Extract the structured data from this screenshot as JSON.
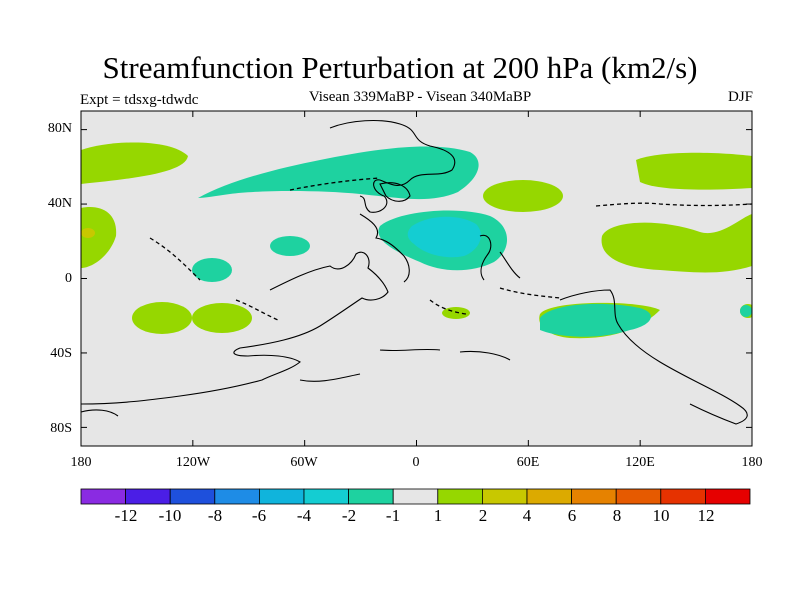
{
  "header": {
    "title": "Streamfunction Perturbation at 200 hPa (km2/s)",
    "experiment": "Expt = tdsxg-tdwdc",
    "subtitle": "Visean 339MaBP - Visean  340MaBP",
    "season": "DJF"
  },
  "map": {
    "projection": "cylindrical equidistant",
    "lon_range": [
      -180,
      180
    ],
    "lat_range": [
      -90,
      90
    ],
    "y_axis_labels": [
      "80N",
      "40N",
      "0",
      "40S",
      "80S"
    ],
    "x_axis_labels": [
      "180",
      "120W",
      "60W",
      "0",
      "60E",
      "120E",
      "180"
    ],
    "background_color": "#e6e6e6",
    "coastline_color": "#000000"
  },
  "colorbar": {
    "labels": [
      "-12",
      "-10",
      "-8",
      "-6",
      "-4",
      "-2",
      "-1",
      "1",
      "2",
      "4",
      "6",
      "8",
      "10",
      "12"
    ],
    "colors": [
      "#8a2be2",
      "#4b1ee6",
      "#1e50dc",
      "#1e8ce6",
      "#10b4dc",
      "#14cdd2",
      "#1ed2a0",
      "#e6e6e6",
      "#96d700",
      "#c8c800",
      "#dcaa00",
      "#e68200",
      "#e65a00",
      "#e63200",
      "#e60000"
    ]
  }
}
